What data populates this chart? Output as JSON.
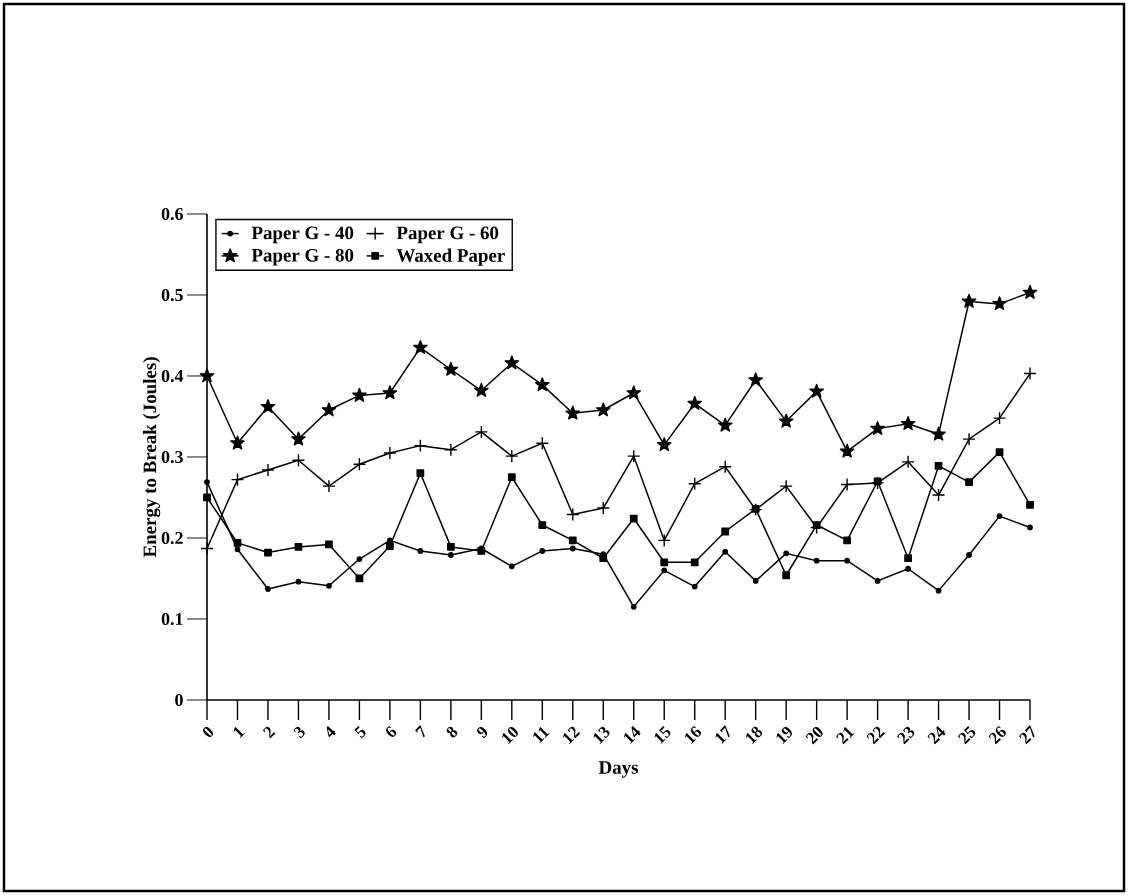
{
  "chart_data": {
    "type": "line",
    "xlabel": "Days",
    "ylabel": "Energy to Break (Joules)",
    "x": [
      0,
      1,
      2,
      3,
      4,
      5,
      6,
      7,
      8,
      9,
      10,
      11,
      12,
      13,
      14,
      15,
      16,
      17,
      18,
      19,
      20,
      21,
      22,
      23,
      24,
      25,
      26,
      27
    ],
    "xlim": [
      0,
      27
    ],
    "xticks": [
      0,
      1,
      2,
      3,
      4,
      5,
      6,
      7,
      8,
      9,
      10,
      11,
      12,
      13,
      14,
      15,
      16,
      17,
      18,
      19,
      20,
      21,
      22,
      23,
      24,
      25,
      26,
      27
    ],
    "ylim": [
      0,
      0.6
    ],
    "yticks": [
      0,
      0.1,
      0.2,
      0.3,
      0.4,
      0.5,
      0.6
    ],
    "legend": "top left",
    "line_style": "solid",
    "series": [
      {
        "name": "Paper G - 40",
        "color": "#000000",
        "marker": "circle",
        "values": [
          0.269,
          0.186,
          0.137,
          0.146,
          0.141,
          0.174,
          0.197,
          0.184,
          0.179,
          0.187,
          0.165,
          0.184,
          0.187,
          0.18,
          0.115,
          0.16,
          0.14,
          0.183,
          0.147,
          0.181,
          0.172,
          0.172,
          0.147,
          0.162,
          0.135,
          0.179,
          0.227,
          0.213
        ]
      },
      {
        "name": "Paper G - 60",
        "color": "#000000",
        "marker": "cross",
        "values": [
          0.187,
          0.272,
          0.284,
          0.296,
          0.264,
          0.291,
          0.305,
          0.314,
          0.309,
          0.331,
          0.301,
          0.317,
          0.229,
          0.237,
          0.301,
          0.197,
          0.267,
          0.288,
          0.235,
          0.264,
          0.213,
          0.266,
          0.268,
          0.294,
          0.253,
          0.322,
          0.348,
          0.403
        ]
      },
      {
        "name": "Paper G - 80",
        "color": "#000000",
        "marker": "star",
        "values": [
          0.4,
          0.317,
          0.362,
          0.322,
          0.358,
          0.376,
          0.379,
          0.435,
          0.408,
          0.382,
          0.416,
          0.389,
          0.354,
          0.358,
          0.379,
          0.315,
          0.366,
          0.339,
          0.395,
          0.344,
          0.381,
          0.307,
          0.335,
          0.341,
          0.328,
          0.492,
          0.489,
          0.503
        ]
      },
      {
        "name": "Waxed Paper",
        "color": "#000000",
        "marker": "square",
        "values": [
          0.25,
          0.194,
          0.182,
          0.189,
          0.192,
          0.15,
          0.19,
          0.28,
          0.189,
          0.184,
          0.275,
          0.216,
          0.197,
          0.175,
          0.224,
          0.17,
          0.17,
          0.208,
          0.236,
          0.154,
          0.216,
          0.197,
          0.27,
          0.175,
          0.289,
          0.269,
          0.306,
          0.241
        ]
      }
    ]
  }
}
